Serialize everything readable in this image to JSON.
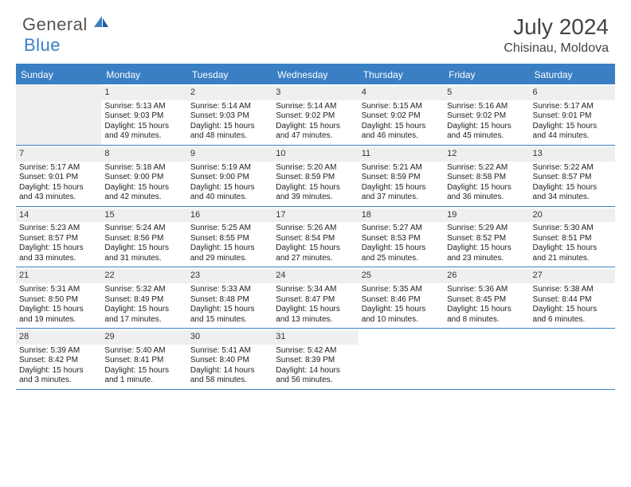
{
  "brand": {
    "text1": "General",
    "text2": "Blue"
  },
  "title": {
    "month_year": "July 2024",
    "location": "Chisinau, Moldova"
  },
  "colors": {
    "accent": "#3a7fc4",
    "header_bg": "#3a7fc4",
    "header_text": "#ffffff",
    "daynum_bg": "#f0efef",
    "body_text": "#222222",
    "page_bg": "#ffffff"
  },
  "day_headers": [
    "Sunday",
    "Monday",
    "Tuesday",
    "Wednesday",
    "Thursday",
    "Friday",
    "Saturday"
  ],
  "weeks": [
    [
      {
        "empty": true
      },
      {
        "n": "1",
        "sr": "Sunrise: 5:13 AM",
        "ss": "Sunset: 9:03 PM",
        "dl": "Daylight: 15 hours and 49 minutes."
      },
      {
        "n": "2",
        "sr": "Sunrise: 5:14 AM",
        "ss": "Sunset: 9:03 PM",
        "dl": "Daylight: 15 hours and 48 minutes."
      },
      {
        "n": "3",
        "sr": "Sunrise: 5:14 AM",
        "ss": "Sunset: 9:02 PM",
        "dl": "Daylight: 15 hours and 47 minutes."
      },
      {
        "n": "4",
        "sr": "Sunrise: 5:15 AM",
        "ss": "Sunset: 9:02 PM",
        "dl": "Daylight: 15 hours and 46 minutes."
      },
      {
        "n": "5",
        "sr": "Sunrise: 5:16 AM",
        "ss": "Sunset: 9:02 PM",
        "dl": "Daylight: 15 hours and 45 minutes."
      },
      {
        "n": "6",
        "sr": "Sunrise: 5:17 AM",
        "ss": "Sunset: 9:01 PM",
        "dl": "Daylight: 15 hours and 44 minutes."
      }
    ],
    [
      {
        "n": "7",
        "sr": "Sunrise: 5:17 AM",
        "ss": "Sunset: 9:01 PM",
        "dl": "Daylight: 15 hours and 43 minutes."
      },
      {
        "n": "8",
        "sr": "Sunrise: 5:18 AM",
        "ss": "Sunset: 9:00 PM",
        "dl": "Daylight: 15 hours and 42 minutes."
      },
      {
        "n": "9",
        "sr": "Sunrise: 5:19 AM",
        "ss": "Sunset: 9:00 PM",
        "dl": "Daylight: 15 hours and 40 minutes."
      },
      {
        "n": "10",
        "sr": "Sunrise: 5:20 AM",
        "ss": "Sunset: 8:59 PM",
        "dl": "Daylight: 15 hours and 39 minutes."
      },
      {
        "n": "11",
        "sr": "Sunrise: 5:21 AM",
        "ss": "Sunset: 8:59 PM",
        "dl": "Daylight: 15 hours and 37 minutes."
      },
      {
        "n": "12",
        "sr": "Sunrise: 5:22 AM",
        "ss": "Sunset: 8:58 PM",
        "dl": "Daylight: 15 hours and 36 minutes."
      },
      {
        "n": "13",
        "sr": "Sunrise: 5:22 AM",
        "ss": "Sunset: 8:57 PM",
        "dl": "Daylight: 15 hours and 34 minutes."
      }
    ],
    [
      {
        "n": "14",
        "sr": "Sunrise: 5:23 AM",
        "ss": "Sunset: 8:57 PM",
        "dl": "Daylight: 15 hours and 33 minutes."
      },
      {
        "n": "15",
        "sr": "Sunrise: 5:24 AM",
        "ss": "Sunset: 8:56 PM",
        "dl": "Daylight: 15 hours and 31 minutes."
      },
      {
        "n": "16",
        "sr": "Sunrise: 5:25 AM",
        "ss": "Sunset: 8:55 PM",
        "dl": "Daylight: 15 hours and 29 minutes."
      },
      {
        "n": "17",
        "sr": "Sunrise: 5:26 AM",
        "ss": "Sunset: 8:54 PM",
        "dl": "Daylight: 15 hours and 27 minutes."
      },
      {
        "n": "18",
        "sr": "Sunrise: 5:27 AM",
        "ss": "Sunset: 8:53 PM",
        "dl": "Daylight: 15 hours and 25 minutes."
      },
      {
        "n": "19",
        "sr": "Sunrise: 5:29 AM",
        "ss": "Sunset: 8:52 PM",
        "dl": "Daylight: 15 hours and 23 minutes."
      },
      {
        "n": "20",
        "sr": "Sunrise: 5:30 AM",
        "ss": "Sunset: 8:51 PM",
        "dl": "Daylight: 15 hours and 21 minutes."
      }
    ],
    [
      {
        "n": "21",
        "sr": "Sunrise: 5:31 AM",
        "ss": "Sunset: 8:50 PM",
        "dl": "Daylight: 15 hours and 19 minutes."
      },
      {
        "n": "22",
        "sr": "Sunrise: 5:32 AM",
        "ss": "Sunset: 8:49 PM",
        "dl": "Daylight: 15 hours and 17 minutes."
      },
      {
        "n": "23",
        "sr": "Sunrise: 5:33 AM",
        "ss": "Sunset: 8:48 PM",
        "dl": "Daylight: 15 hours and 15 minutes."
      },
      {
        "n": "24",
        "sr": "Sunrise: 5:34 AM",
        "ss": "Sunset: 8:47 PM",
        "dl": "Daylight: 15 hours and 13 minutes."
      },
      {
        "n": "25",
        "sr": "Sunrise: 5:35 AM",
        "ss": "Sunset: 8:46 PM",
        "dl": "Daylight: 15 hours and 10 minutes."
      },
      {
        "n": "26",
        "sr": "Sunrise: 5:36 AM",
        "ss": "Sunset: 8:45 PM",
        "dl": "Daylight: 15 hours and 8 minutes."
      },
      {
        "n": "27",
        "sr": "Sunrise: 5:38 AM",
        "ss": "Sunset: 8:44 PM",
        "dl": "Daylight: 15 hours and 6 minutes."
      }
    ],
    [
      {
        "n": "28",
        "sr": "Sunrise: 5:39 AM",
        "ss": "Sunset: 8:42 PM",
        "dl": "Daylight: 15 hours and 3 minutes."
      },
      {
        "n": "29",
        "sr": "Sunrise: 5:40 AM",
        "ss": "Sunset: 8:41 PM",
        "dl": "Daylight: 15 hours and 1 minute."
      },
      {
        "n": "30",
        "sr": "Sunrise: 5:41 AM",
        "ss": "Sunset: 8:40 PM",
        "dl": "Daylight: 14 hours and 58 minutes."
      },
      {
        "n": "31",
        "sr": "Sunrise: 5:42 AM",
        "ss": "Sunset: 8:39 PM",
        "dl": "Daylight: 14 hours and 56 minutes."
      },
      {
        "empty": true
      },
      {
        "empty": true
      },
      {
        "empty": true
      }
    ]
  ]
}
